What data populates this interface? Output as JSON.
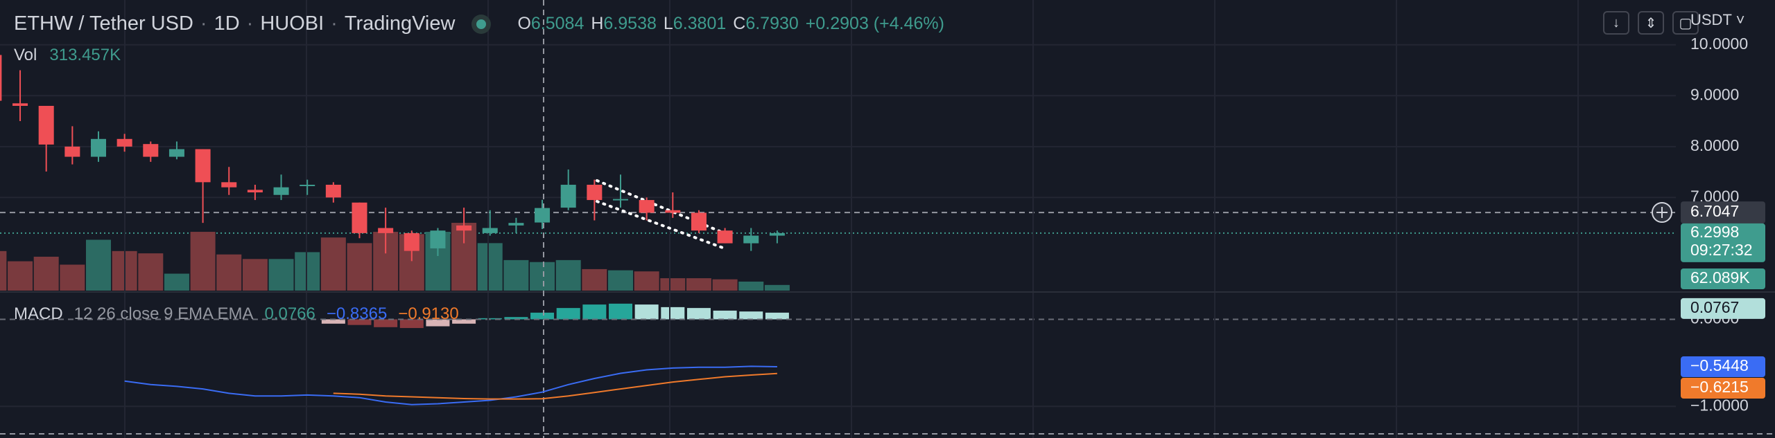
{
  "header": {
    "symbol": "ETHW / Tether USD",
    "interval": "1D",
    "exchange": "HUOBI",
    "source": "TradingView",
    "ohlc": [
      {
        "key": "O",
        "value": "6.5084"
      },
      {
        "key": "H",
        "value": "6.9538"
      },
      {
        "key": "L",
        "value": "6.3801"
      },
      {
        "key": "C",
        "value": "6.7930"
      }
    ],
    "change": "+0.2903 (+4.46%)",
    "currency": "USDT"
  },
  "price_pane": {
    "ylim": [
      5.17,
      10.88
    ],
    "yticks": [
      {
        "value": 10,
        "label": "10.0000"
      },
      {
        "value": 9,
        "label": "9.0000"
      },
      {
        "value": 8,
        "label": "8.0000"
      },
      {
        "value": 7,
        "label": "7.0000"
      }
    ],
    "crosshair": {
      "value": 6.7047,
      "label": "6.7047"
    },
    "last_price": {
      "value": 6.2998,
      "label": "6.2998",
      "countdown": "09:27:32"
    },
    "colors": {
      "up": "#3f9c8e",
      "down": "#ef4f55",
      "vol_up": "#2c6b63",
      "vol_down": "#7a3a3e"
    },
    "candles": {
      "open": [
        9.8,
        8.85,
        8.8,
        8.0,
        7.8,
        8.15,
        8.05,
        7.8,
        7.95,
        7.3,
        7.15,
        7.05,
        7.25,
        7.25,
        6.9,
        6.4,
        6.3,
        6.0,
        6.45,
        6.3,
        6.45,
        6.5084,
        6.8,
        7.25,
        6.95,
        6.95,
        6.75,
        6.7,
        6.35,
        6.1,
        6.25
      ],
      "high": [
        10.0,
        9.5,
        8.8,
        8.4,
        8.3,
        8.25,
        8.1,
        8.1,
        7.95,
        7.6,
        7.25,
        7.45,
        7.35,
        7.3,
        6.9,
        6.8,
        6.35,
        6.4,
        6.8,
        6.75,
        6.6,
        6.9538,
        7.55,
        7.35,
        7.45,
        7.0,
        7.1,
        6.75,
        6.4,
        6.4,
        6.35
      ],
      "low": [
        8.8,
        8.5,
        7.51,
        7.65,
        7.7,
        7.9,
        7.7,
        7.75,
        6.5,
        7.05,
        6.95,
        6.95,
        7.05,
        6.9,
        6.2,
        5.9,
        5.75,
        5.85,
        6.1,
        6.25,
        6.3,
        6.3801,
        6.75,
        6.55,
        6.8,
        6.55,
        6.6,
        6.3,
        6.1,
        5.95,
        6.1
      ],
      "close": [
        8.9,
        8.8,
        8.04,
        7.8,
        8.15,
        8.0,
        7.8,
        7.95,
        7.3,
        7.2,
        7.1,
        7.2,
        7.25,
        7.0,
        6.3,
        6.3,
        5.95,
        6.35,
        6.35,
        6.4,
        6.5,
        6.793,
        7.25,
        6.95,
        6.97,
        6.7,
        6.7,
        6.35,
        6.1,
        6.25,
        6.2998
      ]
    },
    "volume": {
      "name": "Vol",
      "legend_value": "313.457K",
      "last_label": "62.089K",
      "values": [
        434,
        322,
        372,
        285,
        558,
        434,
        409,
        186,
        645,
        397,
        347,
        347,
        422,
        583,
        521,
        645,
        620,
        645,
        744,
        521,
        335,
        313.457,
        335,
        236,
        223,
        211,
        136,
        136,
        124,
        99,
        62.089
      ]
    }
  },
  "macd_pane": {
    "name": "MACD",
    "params": "12 26 close 9 EMA EMA",
    "legend_values": [
      "0.0766",
      "−0.8365",
      "−0.9130"
    ],
    "ylim": [
      -1.26,
      0.29
    ],
    "yticks": [
      {
        "value": 0,
        "label": "0.0000"
      },
      {
        "value": -1,
        "label": "−1.0000"
      }
    ],
    "hist_colors": [
      "#26a69a",
      "#b2dfdb",
      "#8b3b3f",
      "#d8b4b6"
    ],
    "histogram": {
      "last_label": "0.0767",
      "values": [
        null,
        null,
        null,
        null,
        null,
        null,
        null,
        null,
        null,
        null,
        null,
        null,
        null,
        -0.05,
        -0.065,
        -0.09,
        -0.1,
        -0.08,
        -0.05,
        0.013,
        0.026,
        0.0766,
        0.13,
        0.17,
        0.18,
        0.17,
        0.14,
        0.13,
        0.1,
        0.09,
        0.0767
      ]
    },
    "macd": {
      "color": "#3a6cf4",
      "last_label": "−0.5448",
      "values": [
        null,
        null,
        null,
        null,
        null,
        -0.71,
        -0.75,
        -0.77,
        -0.8,
        -0.85,
        -0.88,
        -0.88,
        -0.87,
        -0.88,
        -0.9,
        -0.95,
        -0.98,
        -0.97,
        -0.95,
        -0.93,
        -0.89,
        -0.8365,
        -0.75,
        -0.68,
        -0.62,
        -0.58,
        -0.56,
        -0.55,
        -0.55,
        -0.54,
        -0.5448
      ]
    },
    "signal": {
      "color": "#f07a2b",
      "last_label": "−0.6215",
      "values": [
        null,
        null,
        null,
        null,
        null,
        null,
        null,
        null,
        null,
        null,
        null,
        null,
        null,
        -0.85,
        -0.86,
        -0.88,
        -0.89,
        -0.9,
        -0.91,
        -0.915,
        -0.915,
        -0.913,
        -0.88,
        -0.84,
        -0.8,
        -0.76,
        -0.72,
        -0.69,
        -0.66,
        -0.64,
        -0.6215
      ]
    }
  }
}
